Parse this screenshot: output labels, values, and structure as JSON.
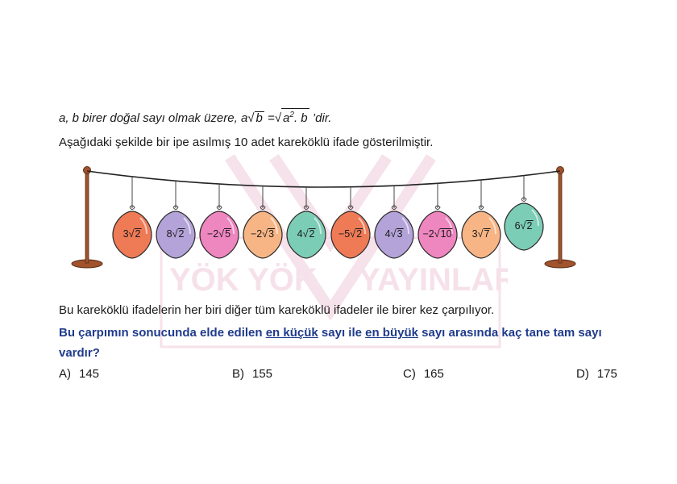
{
  "intro": {
    "prefix": "a, b birer doğal sayı olmak üzere, a",
    "root_b": "b",
    "equals": " =",
    "root_ab": "a",
    "exp": "2",
    "root_ab_rest": ". b",
    "suffix": " ’dir."
  },
  "description": "Aşağıdaki şekilde bir ipe asılmış 10 adet kareköklü ifade gösterilmiştir.",
  "statement": "Bu kareköklü ifadelerin her biri diğer tüm kareköklü ifadeler ile birer kez çarpılıyor.",
  "question": {
    "part1": "Bu çarpımın sonucunda elde edilen ",
    "smallest": "en küçük",
    "part2": " sayı ile ",
    "largest": "en büyük",
    "part3": " sayı arasında kaç tane tam sayı vardır?"
  },
  "choices": [
    {
      "label": "A)",
      "value": "145"
    },
    {
      "label": "B)",
      "value": "155"
    },
    {
      "label": "C)",
      "value": "165"
    },
    {
      "label": "D)",
      "value": "175"
    }
  ],
  "balloons": [
    {
      "coef": "3",
      "radicand": "2",
      "color": "#ee7a56"
    },
    {
      "coef": "8",
      "radicand": "2",
      "color": "#b3a3d8"
    },
    {
      "coef": "−2",
      "radicand": "5",
      "color": "#ee86bf"
    },
    {
      "coef": "−2",
      "radicand": "3",
      "color": "#f7b585"
    },
    {
      "coef": "4",
      "radicand": "2",
      "color": "#7ccdb5"
    },
    {
      "coef": "−5",
      "radicand": "2",
      "color": "#ee7a56"
    },
    {
      "coef": "4",
      "radicand": "3",
      "color": "#b3a3d8"
    },
    {
      "coef": "−2",
      "radicand": "10",
      "color": "#ee86bf"
    },
    {
      "coef": "3",
      "radicand": "7",
      "color": "#f7b585"
    },
    {
      "coef": "6",
      "radicand": "2",
      "color": "#7ccdb5"
    }
  ],
  "watermark": {
    "text_left": "YÖK YÖK",
    "text_right": "YAYINLARI"
  }
}
